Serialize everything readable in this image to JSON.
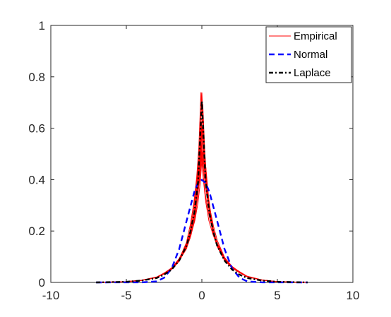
{
  "chart_data": {
    "type": "line",
    "title": "",
    "xlabel": "",
    "ylabel": "",
    "xlim": [
      -10,
      10
    ],
    "ylim": [
      0,
      1
    ],
    "x_ticks": [
      -10,
      -5,
      0,
      5,
      10
    ],
    "y_ticks": [
      0,
      0.2,
      0.4,
      0.6,
      0.8,
      1
    ],
    "x_tick_labels": [
      "-10",
      "-5",
      "0",
      "5",
      "10"
    ],
    "y_tick_labels": [
      "0",
      "0.2",
      "0.4",
      "0.6",
      "0.8",
      "1"
    ],
    "grid": false,
    "box": true,
    "legend_position": "top-right",
    "series": [
      {
        "name": "Empirical",
        "color": "#ff0000",
        "style": "solid",
        "description_count": 10,
        "x": [
          -7,
          -5,
          -4,
          -3,
          -2.5,
          -2,
          -1.5,
          -1,
          -0.75,
          -0.5,
          -0.3,
          -0.15,
          0,
          0.15,
          0.3,
          0.5,
          0.75,
          1,
          1.5,
          2,
          2.5,
          3,
          4,
          5,
          7
        ],
        "values": [
          0,
          0.003,
          0.008,
          0.02,
          0.035,
          0.055,
          0.09,
          0.15,
          0.21,
          0.3,
          0.42,
          0.55,
          0.76,
          0.56,
          0.43,
          0.31,
          0.22,
          0.16,
          0.095,
          0.06,
          0.04,
          0.023,
          0.009,
          0.003,
          0
        ]
      },
      {
        "name": "Normal",
        "color": "#0000ff",
        "style": "dashed",
        "x": [
          -7,
          -4,
          -3,
          -2.5,
          -2,
          -1.5,
          -1,
          -0.5,
          -0.25,
          0,
          0.25,
          0.5,
          1,
          1.5,
          2,
          2.5,
          3,
          4,
          7
        ],
        "values": [
          0,
          0.0001,
          0.004,
          0.018,
          0.054,
          0.13,
          0.242,
          0.352,
          0.387,
          0.399,
          0.387,
          0.352,
          0.242,
          0.13,
          0.054,
          0.018,
          0.004,
          0.0001,
          0
        ]
      },
      {
        "name": "Laplace",
        "color": "#000000",
        "style": "dashdot",
        "x": [
          -7,
          -5,
          -4,
          -3,
          -2.5,
          -2,
          -1.5,
          -1,
          -0.75,
          -0.5,
          -0.25,
          0,
          0.25,
          0.5,
          0.75,
          1,
          1.5,
          2,
          2.5,
          3,
          4,
          5,
          7
        ],
        "values": [
          0,
          0.0025,
          0.007,
          0.017,
          0.03,
          0.05,
          0.085,
          0.145,
          0.2,
          0.27,
          0.39,
          0.707,
          0.39,
          0.27,
          0.2,
          0.145,
          0.085,
          0.05,
          0.03,
          0.017,
          0.007,
          0.0025,
          0
        ]
      }
    ]
  }
}
